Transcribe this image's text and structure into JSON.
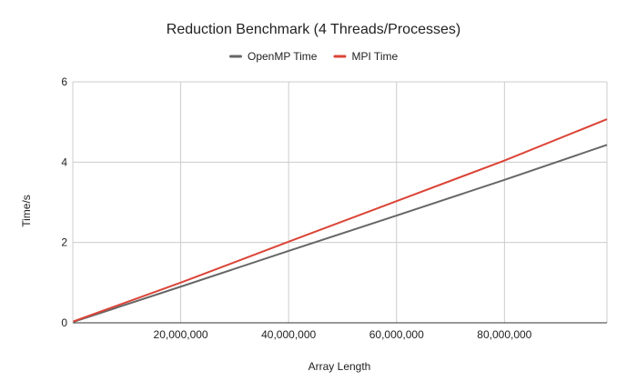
{
  "chart_data": {
    "type": "line",
    "title": "Reduction Benchmark (4 Threads/Processes)",
    "xlabel": "Array Length",
    "ylabel": "Time/s",
    "xlim": [
      0,
      99000000
    ],
    "ylim": [
      0,
      6
    ],
    "x_ticks": [
      {
        "value": 20000000,
        "label": "20,000,000"
      },
      {
        "value": 40000000,
        "label": "40,000,000"
      },
      {
        "value": 60000000,
        "label": "60,000,000"
      },
      {
        "value": 80000000,
        "label": "80,000,000"
      }
    ],
    "y_ticks": [
      {
        "value": 0,
        "label": "0"
      },
      {
        "value": 2,
        "label": "2"
      },
      {
        "value": 4,
        "label": "4"
      },
      {
        "value": 6,
        "label": "6"
      }
    ],
    "grid": true,
    "legend_position": "top",
    "series": [
      {
        "name": "OpenMP Time",
        "color": "#666666",
        "points": [
          [
            0,
            0.02
          ],
          [
            20000000,
            0.9
          ],
          [
            40000000,
            1.79
          ],
          [
            60000000,
            2.67
          ],
          [
            80000000,
            3.56
          ],
          [
            99000000,
            4.43
          ]
        ]
      },
      {
        "name": "MPI Time",
        "color": "#db4437",
        "points": [
          [
            0,
            0.03
          ],
          [
            20000000,
            1.0
          ],
          [
            40000000,
            2.02
          ],
          [
            60000000,
            3.03
          ],
          [
            80000000,
            4.04
          ],
          [
            99000000,
            5.07
          ]
        ]
      }
    ]
  }
}
